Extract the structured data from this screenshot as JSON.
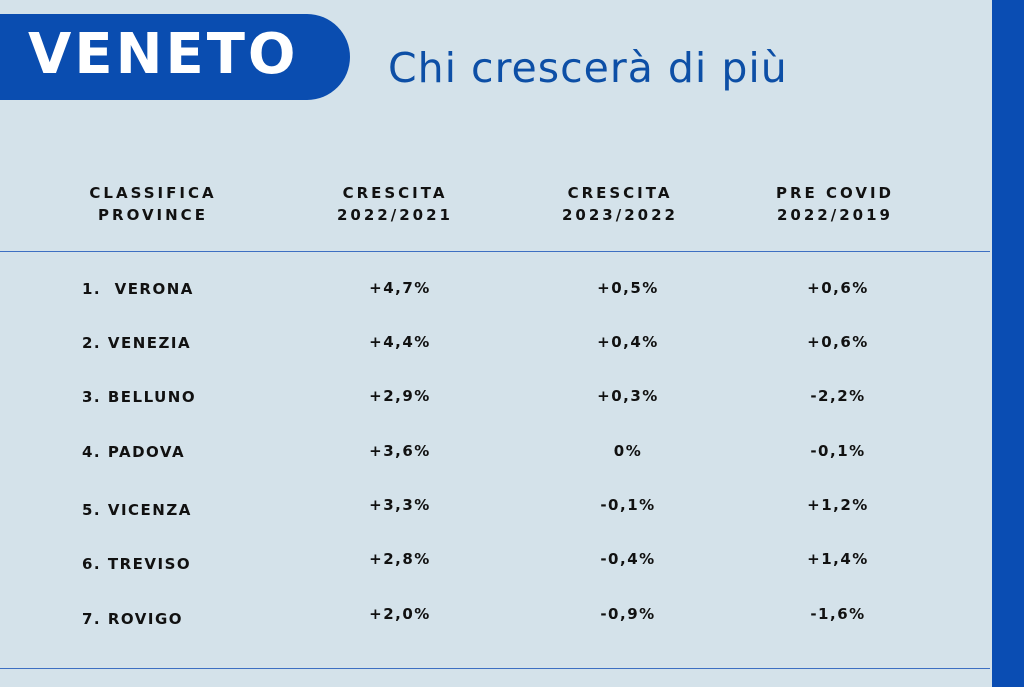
{
  "header": {
    "badge": "VENETO",
    "title": "Chi crescerà di più"
  },
  "table": {
    "columns": [
      [
        "CLASSIFICA",
        "PROVINCE"
      ],
      [
        "CRESCITA",
        "2022/2021"
      ],
      [
        "CRESCITA",
        "2023/2022"
      ],
      [
        "PRE COVID",
        "2022/2019"
      ]
    ],
    "rows": [
      [
        "1.  VERONA",
        "+4,7%",
        "+0,5%",
        "+0,6%"
      ],
      [
        "2. VENEZIA",
        "+4,4%",
        "+0,4%",
        "+0,6%"
      ],
      [
        "3. BELLUNO",
        "+2,9%",
        "+0,3%",
        "-2,2%"
      ],
      [
        "4. PADOVA",
        "+3,6%",
        "0%",
        "-0,1%"
      ],
      [
        "5. VICENZA",
        "+3,3%",
        "-0,1%",
        "+1,2%"
      ],
      [
        "6. TREVISO",
        "+2,8%",
        "-0,4%",
        "+1,4%"
      ],
      [
        "7. ROVIGO",
        "+2,0%",
        "-0,9%",
        "-1,6%"
      ]
    ]
  }
}
